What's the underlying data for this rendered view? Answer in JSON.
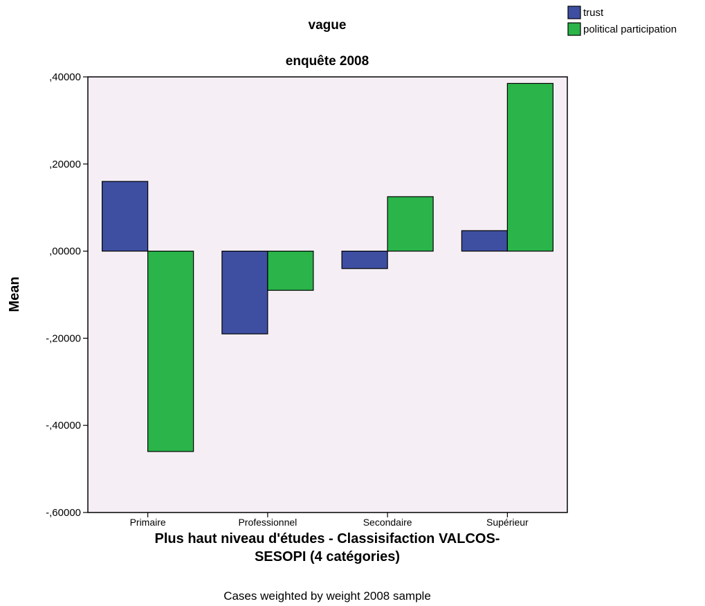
{
  "chart_data": {
    "type": "bar",
    "panel_title": "vague",
    "subtitle": "enquête 2008",
    "ylabel": "Mean",
    "xlabel_lines": [
      "Plus haut niveau d'études - Classisifaction VALCOS-",
      "SESOPI (4 catégories)"
    ],
    "footnote": "Cases weighted by weight 2008 sample",
    "categories": [
      "Primaire",
      "Professionnel",
      "Secondaire",
      "Supérieur"
    ],
    "series": [
      {
        "name": "trust",
        "color": "#3e4fa1",
        "values": [
          0.16,
          -0.19,
          -0.04,
          0.047
        ]
      },
      {
        "name": "political participation",
        "color": "#2ab44a",
        "values": [
          -0.46,
          -0.09,
          0.125,
          0.385
        ]
      }
    ],
    "ylim": [
      -0.6,
      0.4
    ],
    "yticks": [
      0.4,
      0.2,
      0.0,
      -0.2,
      -0.4,
      -0.6
    ],
    "ytick_labels": [
      ",40000",
      ",20000",
      ",00000",
      "-,20000",
      "-,40000",
      "-,60000"
    ],
    "plot_background": "#f5eff5",
    "legend_position": "top-right",
    "grid": false
  }
}
